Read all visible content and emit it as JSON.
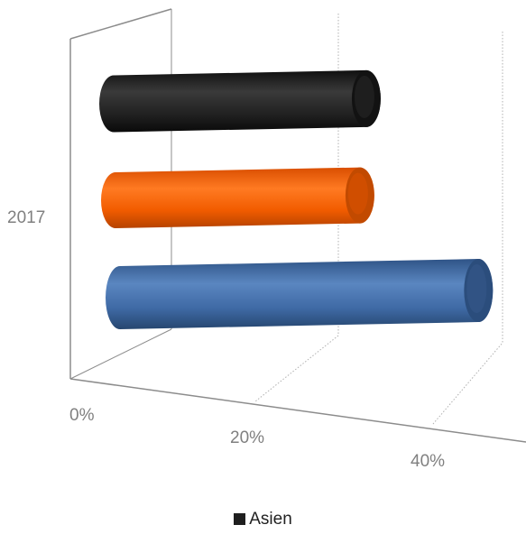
{
  "chart_data": {
    "type": "bar",
    "orientation": "horizontal-3d-cylinder",
    "categories": [
      "2017"
    ],
    "series": [
      {
        "name": "",
        "values": [
          0.44
        ],
        "color": "#3d67a0"
      },
      {
        "name": "",
        "values": [
          0.3
        ],
        "color": "#f25c00"
      },
      {
        "name": "Asien",
        "values": [
          0.31
        ],
        "color": "#1f1f1f"
      }
    ],
    "x_ticks": [
      "0%",
      "20%",
      "40%"
    ],
    "xlim": [
      0,
      0.5
    ],
    "grid": true,
    "legend_position": "bottom",
    "legend": [
      {
        "name": "Asien",
        "color": "#1f1f1f"
      }
    ]
  }
}
